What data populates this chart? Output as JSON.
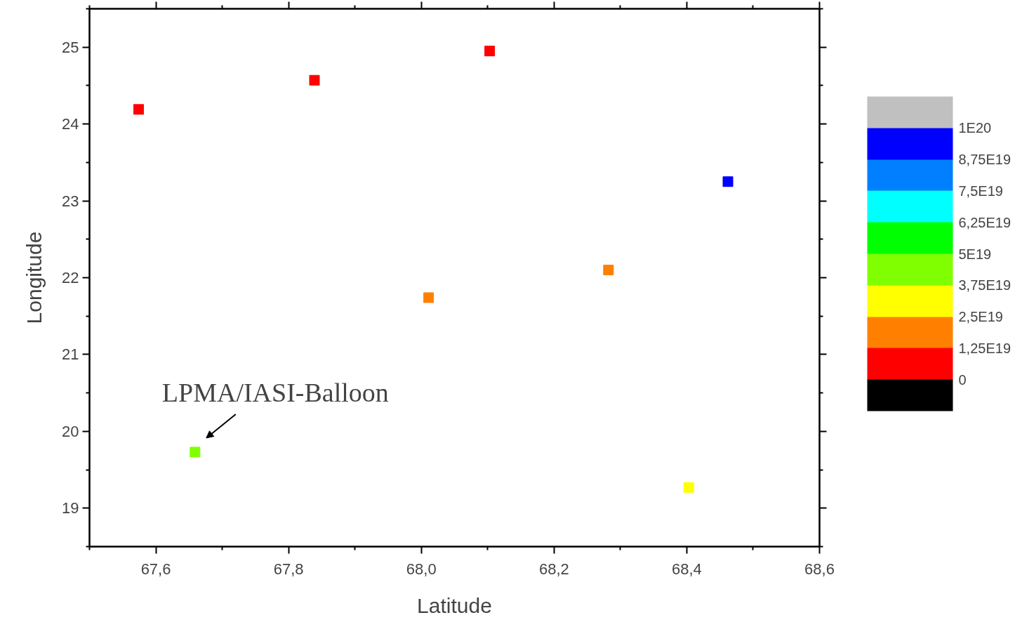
{
  "chart_data": {
    "type": "scatter",
    "xlabel": "Latitude",
    "ylabel": "Longitude",
    "x": [
      67.574,
      67.839,
      68.103,
      68.462,
      68.282,
      68.011,
      67.659,
      68.403
    ],
    "values": [
      24.19,
      24.57,
      24.95,
      23.25,
      22.1,
      21.74,
      19.73,
      19.27
    ],
    "colors": [
      "#ff0000",
      "#ff0000",
      "#ff0000",
      "#0000ff",
      "#ff8000",
      "#ff8000",
      "#80ff00",
      "#ffff00"
    ],
    "marker": "square",
    "xlim": [
      67.5,
      68.6
    ],
    "ylim": [
      18.5,
      25.5
    ],
    "xticks": [
      {
        "value": 67.6,
        "label": "67,6"
      },
      {
        "value": 67.8,
        "label": "67,8"
      },
      {
        "value": 68.0,
        "label": "68,0"
      },
      {
        "value": 68.2,
        "label": "68,2"
      },
      {
        "value": 68.4,
        "label": "68,4"
      },
      {
        "value": 68.6,
        "label": "68,6"
      }
    ],
    "yticks": [
      19,
      20,
      21,
      22,
      23,
      24,
      25
    ],
    "clim": [
      0,
      1e+20
    ],
    "cticks": [
      {
        "value": 0,
        "label": "0"
      },
      {
        "value": 1.25e+19,
        "label": "1,25E19"
      },
      {
        "value": 2.5e+19,
        "label": "2,5E19"
      },
      {
        "value": 3.75e+19,
        "label": "3,75E19"
      },
      {
        "value": 5e+19,
        "label": "5E19"
      },
      {
        "value": 6.25e+19,
        "label": "6,25E19"
      },
      {
        "value": 7.5e+19,
        "label": "7,5E19"
      },
      {
        "value": 8.75e+19,
        "label": "8,75E19"
      },
      {
        "value": 1e+20,
        "label": "1E20"
      }
    ],
    "grid": false,
    "annotations": [
      {
        "text": "LPMA/IASI-Balloon",
        "x": 67.659,
        "y": 19.73
      }
    ]
  }
}
